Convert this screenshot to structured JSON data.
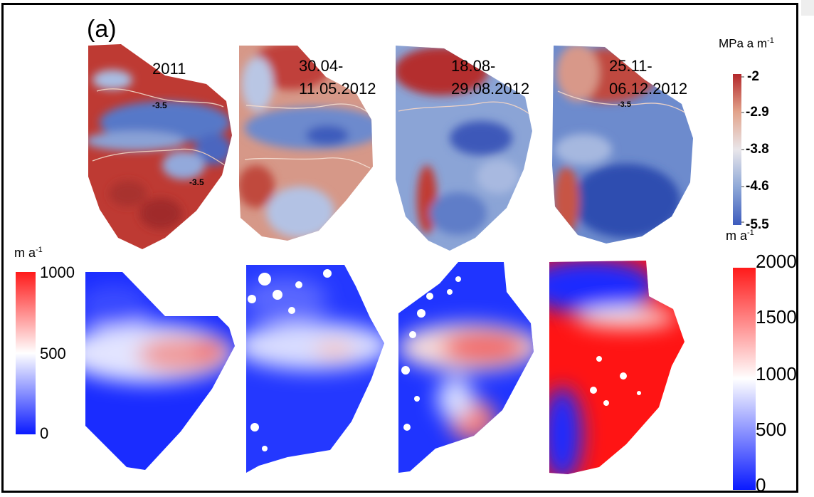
{
  "figure": {
    "panel_label": "(a)",
    "top_row": {
      "titles": [
        {
          "line1": "2011",
          "line2": ""
        },
        {
          "line1": "30.04-",
          "line2": "11.05.2012"
        },
        {
          "line1": "18.08-",
          "line2": "29.08.2012"
        },
        {
          "line1": "25.11-",
          "line2": "06.12.2012"
        }
      ],
      "contour_label": "-3.5",
      "colorbar": {
        "unit_base": "MPa a m",
        "unit_sup": "-1",
        "ticks": [
          "-2",
          "-2.9",
          "-3.8",
          "-4.6",
          "-5.5"
        ],
        "colors": [
          "#b3282b",
          "#e2a38b",
          "#e9e6ea",
          "#8ea8d7",
          "#3d5bbd"
        ]
      }
    },
    "bottom_row": {
      "left_colorbar": {
        "unit_base": "m a",
        "unit_sup": "-1",
        "ticks": [
          "1000",
          "500",
          "0"
        ],
        "colors": [
          "#ff1a1a",
          "#ffffff",
          "#0a1aff"
        ]
      },
      "right_colorbar": {
        "unit_base": "m a",
        "unit_sup": "-1",
        "ticks": [
          "2000",
          "1500",
          "1000",
          "500",
          "0"
        ],
        "colors": [
          "#ff1a1a",
          "#ffffff",
          "#0a1aff"
        ]
      }
    }
  }
}
